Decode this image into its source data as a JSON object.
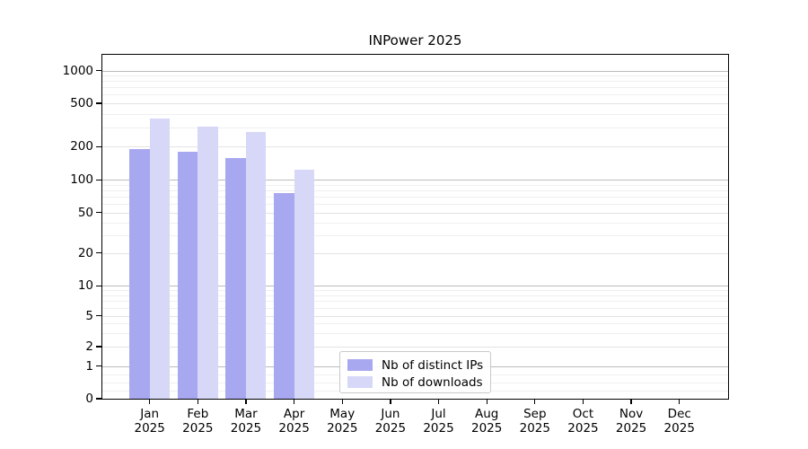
{
  "title": "INPower 2025",
  "legend": {
    "items": [
      {
        "label": "Nb of distinct IPs",
        "color": "#a8a8f0"
      },
      {
        "label": "Nb of downloads",
        "color": "#d7d7f8"
      }
    ]
  },
  "chart_data": {
    "type": "bar",
    "title": "INPower 2025",
    "categories": [
      {
        "month": "Jan",
        "year": "2025"
      },
      {
        "month": "Feb",
        "year": "2025"
      },
      {
        "month": "Mar",
        "year": "2025"
      },
      {
        "month": "Apr",
        "year": "2025"
      },
      {
        "month": "May",
        "year": "2025"
      },
      {
        "month": "Jun",
        "year": "2025"
      },
      {
        "month": "Jul",
        "year": "2025"
      },
      {
        "month": "Aug",
        "year": "2025"
      },
      {
        "month": "Sep",
        "year": "2025"
      },
      {
        "month": "Oct",
        "year": "2025"
      },
      {
        "month": "Nov",
        "year": "2025"
      },
      {
        "month": "Dec",
        "year": "2025"
      }
    ],
    "series": [
      {
        "name": "Nb of distinct IPs",
        "color": "#a8a8f0",
        "values": [
          190,
          180,
          158,
          75,
          null,
          null,
          null,
          null,
          null,
          null,
          null,
          null
        ]
      },
      {
        "name": "Nb of downloads",
        "color": "#d7d7f8",
        "values": [
          360,
          305,
          272,
          124,
          null,
          null,
          null,
          null,
          null,
          null,
          null,
          null
        ]
      }
    ],
    "ylabel": "",
    "xlabel": "",
    "yscale": "symlog",
    "ylim": [
      0,
      1400
    ],
    "grid": true,
    "legend_position": "lower center",
    "yticks": [
      {
        "label": "0",
        "value": 0,
        "pos": 0.0,
        "decade": false
      },
      {
        "label": "1",
        "value": 1,
        "pos": 0.0948,
        "decade": true
      },
      {
        "label": "2",
        "value": 2,
        "pos": 0.1514,
        "decade": false
      },
      {
        "label": "5",
        "value": 5,
        "pos": 0.241,
        "decade": false
      },
      {
        "label": "10",
        "value": 10,
        "pos": 0.3282,
        "decade": true
      },
      {
        "label": "20",
        "value": 20,
        "pos": 0.4238,
        "decade": false
      },
      {
        "label": "50",
        "value": 50,
        "pos": 0.5413,
        "decade": false
      },
      {
        "label": "100",
        "value": 100,
        "pos": 0.6363,
        "decade": true
      },
      {
        "label": "200",
        "value": 200,
        "pos": 0.7329,
        "decade": false
      },
      {
        "label": "500",
        "value": 500,
        "pos": 0.859,
        "decade": false
      },
      {
        "label": "1000",
        "value": 1000,
        "pos": 0.9543,
        "decade": true
      }
    ]
  }
}
